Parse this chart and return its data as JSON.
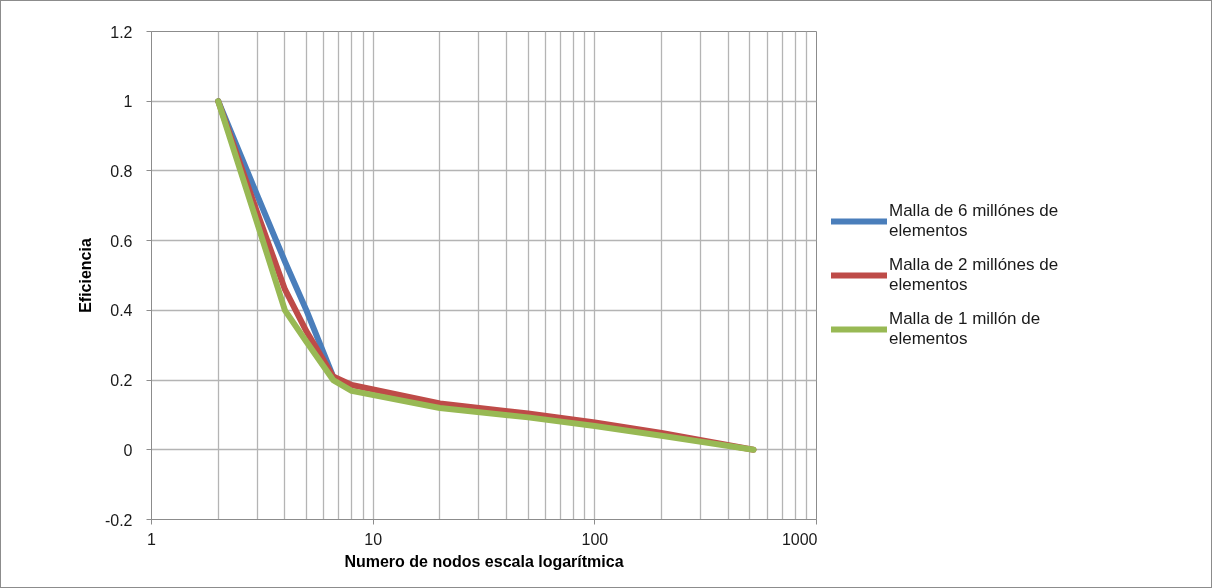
{
  "chart_data": {
    "type": "line",
    "xlabel": "Numero de nodos escala logarítmica",
    "ylabel": "Eficiencia",
    "log": "x",
    "xlim": [
      1,
      1000
    ],
    "xticks": [
      1,
      10,
      100,
      1000
    ],
    "ylim": [
      -0.2,
      1.2
    ],
    "yticks": [
      -0.2,
      0,
      0.2,
      0.4,
      0.6,
      0.8,
      1,
      1.2
    ],
    "grid": true,
    "legend": "right",
    "series": [
      {
        "name": "Malla de 6 millónes de elementos",
        "color": "#4a7ebb",
        "x": [
          2,
          3,
          4,
          5,
          6.6
        ],
        "values": [
          1,
          0.73,
          0.54,
          0.4,
          0.21
        ]
      },
      {
        "name": "Malla de 2 millónes de elementos",
        "color": "#be4b48",
        "x": [
          2,
          3,
          4,
          5,
          6.6,
          8,
          20,
          50,
          100,
          200,
          520
        ],
        "values": [
          1,
          0.68,
          0.46,
          0.34,
          0.21,
          0.186,
          0.133,
          0.104,
          0.078,
          0.048,
          0
        ]
      },
      {
        "name": "Malla de 1 millón de elementos",
        "color": "#98b954",
        "x": [
          2,
          3,
          4,
          5,
          6.6,
          8,
          20,
          50,
          100,
          200,
          520
        ],
        "values": [
          1,
          0.65,
          0.4,
          0.31,
          0.2,
          0.169,
          0.12,
          0.093,
          0.068,
          0.04,
          0
        ]
      }
    ]
  }
}
